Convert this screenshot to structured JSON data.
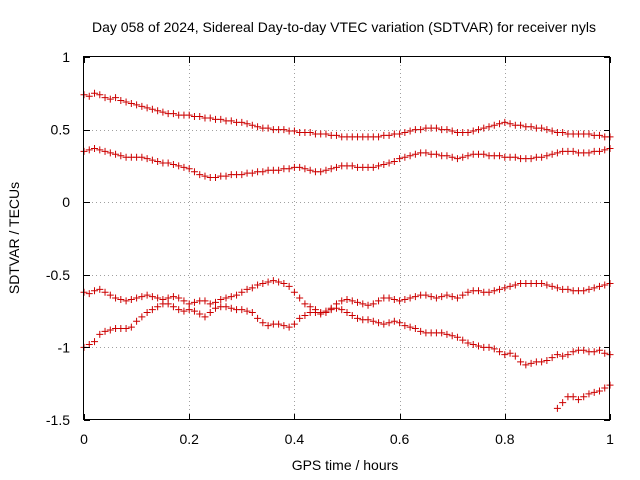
{
  "chart_data": {
    "type": "scatter",
    "title": "Day 058 of 2024, Sidereal Day-to-day VTEC variation (SDTVAR) for receiver nyls",
    "xlabel": "GPS time / hours",
    "ylabel": "SDTVAR / TECUs",
    "xlim": [
      0,
      1
    ],
    "ylim": [
      -1.5,
      1
    ],
    "x_ticks": [
      0,
      0.2,
      0.4,
      0.6,
      0.8,
      1
    ],
    "x_tick_labels": [
      "0",
      "0.2",
      "0.4",
      "0.6",
      "0.8",
      "1"
    ],
    "y_ticks": [
      -1.5,
      -1,
      -0.5,
      0,
      0.5,
      1
    ],
    "y_tick_labels": [
      "-1.5",
      "-1",
      "-0.5",
      "0",
      "0.5",
      "1"
    ],
    "grid": true,
    "marker": "+",
    "color": "#cc0000",
    "series": [
      {
        "name": "track-a",
        "x": [
          0.0,
          0.01,
          0.02,
          0.03,
          0.04,
          0.05,
          0.06,
          0.07,
          0.08,
          0.09,
          0.1,
          0.11,
          0.12,
          0.13,
          0.14,
          0.15,
          0.16,
          0.17,
          0.18,
          0.19,
          0.2,
          0.21,
          0.22,
          0.23,
          0.24,
          0.25,
          0.26,
          0.27,
          0.28,
          0.29,
          0.3,
          0.31,
          0.32,
          0.33,
          0.34,
          0.35,
          0.36,
          0.37,
          0.38,
          0.39,
          0.4,
          0.41,
          0.42,
          0.43,
          0.44,
          0.45,
          0.46,
          0.47,
          0.48,
          0.49,
          0.5,
          0.51,
          0.52,
          0.53,
          0.54,
          0.55,
          0.56,
          0.57,
          0.58,
          0.59,
          0.6,
          0.61,
          0.62,
          0.63,
          0.64,
          0.65,
          0.66,
          0.67,
          0.68,
          0.69,
          0.7,
          0.71,
          0.72,
          0.73,
          0.74,
          0.75,
          0.76,
          0.77,
          0.78,
          0.79,
          0.8,
          0.81,
          0.82,
          0.83,
          0.84,
          0.85,
          0.86,
          0.87,
          0.88,
          0.89,
          0.9,
          0.91,
          0.92,
          0.93,
          0.94,
          0.95,
          0.96,
          0.97,
          0.98,
          0.99,
          1.0
        ],
        "y": [
          0.74,
          0.73,
          0.75,
          0.74,
          0.72,
          0.71,
          0.72,
          0.7,
          0.69,
          0.68,
          0.67,
          0.66,
          0.65,
          0.64,
          0.63,
          0.62,
          0.61,
          0.61,
          0.6,
          0.6,
          0.6,
          0.59,
          0.59,
          0.58,
          0.58,
          0.57,
          0.57,
          0.56,
          0.56,
          0.55,
          0.55,
          0.54,
          0.53,
          0.52,
          0.51,
          0.51,
          0.5,
          0.5,
          0.5,
          0.49,
          0.49,
          0.48,
          0.48,
          0.48,
          0.47,
          0.47,
          0.47,
          0.46,
          0.46,
          0.45,
          0.45,
          0.45,
          0.45,
          0.45,
          0.45,
          0.45,
          0.45,
          0.46,
          0.46,
          0.47,
          0.47,
          0.48,
          0.49,
          0.5,
          0.5,
          0.51,
          0.51,
          0.51,
          0.5,
          0.5,
          0.49,
          0.48,
          0.48,
          0.48,
          0.49,
          0.5,
          0.51,
          0.52,
          0.53,
          0.54,
          0.55,
          0.54,
          0.53,
          0.53,
          0.52,
          0.52,
          0.51,
          0.51,
          0.5,
          0.49,
          0.48,
          0.48,
          0.47,
          0.47,
          0.47,
          0.47,
          0.47,
          0.46,
          0.46,
          0.45,
          0.45
        ]
      },
      {
        "name": "track-b",
        "x": [
          0.0,
          0.01,
          0.02,
          0.03,
          0.04,
          0.05,
          0.06,
          0.07,
          0.08,
          0.09,
          0.1,
          0.11,
          0.12,
          0.13,
          0.14,
          0.15,
          0.16,
          0.17,
          0.18,
          0.19,
          0.2,
          0.21,
          0.22,
          0.23,
          0.24,
          0.25,
          0.26,
          0.27,
          0.28,
          0.29,
          0.3,
          0.31,
          0.32,
          0.33,
          0.34,
          0.35,
          0.36,
          0.37,
          0.38,
          0.39,
          0.4,
          0.41,
          0.42,
          0.43,
          0.44,
          0.45,
          0.46,
          0.47,
          0.48,
          0.49,
          0.5,
          0.51,
          0.52,
          0.53,
          0.54,
          0.55,
          0.56,
          0.57,
          0.58,
          0.59,
          0.6,
          0.61,
          0.62,
          0.63,
          0.64,
          0.65,
          0.66,
          0.67,
          0.68,
          0.69,
          0.7,
          0.71,
          0.72,
          0.73,
          0.74,
          0.75,
          0.76,
          0.77,
          0.78,
          0.79,
          0.8,
          0.81,
          0.82,
          0.83,
          0.84,
          0.85,
          0.86,
          0.87,
          0.88,
          0.89,
          0.9,
          0.91,
          0.92,
          0.93,
          0.94,
          0.95,
          0.96,
          0.97,
          0.98,
          0.99,
          1.0
        ],
        "y": [
          0.35,
          0.36,
          0.37,
          0.36,
          0.35,
          0.34,
          0.33,
          0.32,
          0.31,
          0.31,
          0.31,
          0.31,
          0.3,
          0.29,
          0.28,
          0.27,
          0.27,
          0.26,
          0.25,
          0.24,
          0.23,
          0.21,
          0.19,
          0.18,
          0.17,
          0.17,
          0.18,
          0.18,
          0.19,
          0.19,
          0.19,
          0.2,
          0.2,
          0.21,
          0.21,
          0.22,
          0.22,
          0.22,
          0.23,
          0.23,
          0.24,
          0.24,
          0.23,
          0.22,
          0.21,
          0.21,
          0.22,
          0.23,
          0.24,
          0.25,
          0.25,
          0.25,
          0.24,
          0.24,
          0.24,
          0.24,
          0.25,
          0.26,
          0.27,
          0.28,
          0.3,
          0.31,
          0.32,
          0.33,
          0.34,
          0.34,
          0.33,
          0.33,
          0.32,
          0.32,
          0.31,
          0.3,
          0.31,
          0.32,
          0.33,
          0.33,
          0.33,
          0.32,
          0.32,
          0.32,
          0.31,
          0.31,
          0.31,
          0.3,
          0.3,
          0.3,
          0.31,
          0.31,
          0.32,
          0.33,
          0.34,
          0.35,
          0.35,
          0.35,
          0.34,
          0.34,
          0.34,
          0.35,
          0.35,
          0.36,
          0.37
        ]
      },
      {
        "name": "track-c",
        "x": [
          0.0,
          0.01,
          0.02,
          0.03,
          0.04,
          0.05,
          0.06,
          0.07,
          0.08,
          0.09,
          0.1,
          0.11,
          0.12,
          0.13,
          0.14,
          0.15,
          0.16,
          0.17,
          0.18,
          0.19,
          0.2,
          0.21,
          0.22,
          0.23,
          0.24,
          0.25,
          0.26,
          0.27,
          0.28,
          0.29,
          0.3,
          0.31,
          0.32,
          0.33,
          0.34,
          0.35,
          0.36,
          0.37,
          0.38,
          0.39,
          0.4,
          0.41,
          0.42,
          0.43,
          0.44,
          0.45,
          0.46,
          0.47,
          0.48,
          0.49,
          0.5,
          0.51,
          0.52,
          0.53,
          0.54,
          0.55,
          0.56,
          0.57,
          0.58,
          0.59,
          0.6,
          0.61,
          0.62,
          0.63,
          0.64,
          0.65,
          0.66,
          0.67,
          0.68,
          0.69,
          0.7,
          0.71,
          0.72,
          0.73,
          0.74,
          0.75,
          0.76,
          0.77,
          0.78,
          0.79,
          0.8,
          0.81,
          0.82,
          0.83,
          0.84,
          0.85,
          0.86,
          0.87,
          0.88,
          0.89,
          0.9,
          0.91,
          0.92,
          0.93,
          0.94,
          0.95,
          0.96,
          0.97,
          0.98,
          0.99,
          1.0
        ],
        "y": [
          -0.62,
          -0.63,
          -0.61,
          -0.6,
          -0.62,
          -0.64,
          -0.66,
          -0.67,
          -0.68,
          -0.67,
          -0.66,
          -0.65,
          -0.64,
          -0.65,
          -0.66,
          -0.67,
          -0.66,
          -0.65,
          -0.66,
          -0.68,
          -0.7,
          -0.69,
          -0.68,
          -0.68,
          -0.7,
          -0.69,
          -0.67,
          -0.66,
          -0.65,
          -0.64,
          -0.62,
          -0.6,
          -0.59,
          -0.57,
          -0.56,
          -0.55,
          -0.54,
          -0.55,
          -0.56,
          -0.58,
          -0.62,
          -0.66,
          -0.7,
          -0.72,
          -0.74,
          -0.76,
          -0.75,
          -0.73,
          -0.7,
          -0.68,
          -0.67,
          -0.68,
          -0.69,
          -0.7,
          -0.71,
          -0.7,
          -0.68,
          -0.66,
          -0.66,
          -0.67,
          -0.68,
          -0.67,
          -0.66,
          -0.65,
          -0.64,
          -0.64,
          -0.65,
          -0.66,
          -0.65,
          -0.64,
          -0.65,
          -0.66,
          -0.64,
          -0.62,
          -0.61,
          -0.61,
          -0.62,
          -0.62,
          -0.61,
          -0.6,
          -0.59,
          -0.58,
          -0.57,
          -0.56,
          -0.56,
          -0.56,
          -0.56,
          -0.56,
          -0.57,
          -0.58,
          -0.59,
          -0.6,
          -0.6,
          -0.61,
          -0.61,
          -0.61,
          -0.6,
          -0.59,
          -0.58,
          -0.57,
          -0.56
        ]
      },
      {
        "name": "track-d",
        "x": [
          0.0,
          0.01,
          0.02,
          0.03,
          0.04,
          0.05,
          0.06,
          0.07,
          0.08,
          0.09,
          0.1,
          0.11,
          0.12,
          0.13,
          0.14,
          0.15,
          0.16,
          0.17,
          0.18,
          0.19,
          0.2,
          0.21,
          0.22,
          0.23,
          0.24,
          0.25,
          0.26,
          0.27,
          0.28,
          0.29,
          0.3,
          0.31,
          0.32,
          0.33,
          0.34,
          0.35,
          0.36,
          0.37,
          0.38,
          0.39,
          0.4,
          0.41,
          0.42,
          0.43,
          0.44,
          0.45,
          0.46,
          0.47,
          0.48,
          0.49,
          0.5,
          0.51,
          0.52,
          0.53,
          0.54,
          0.55,
          0.56,
          0.57,
          0.58,
          0.59,
          0.6,
          0.61,
          0.62,
          0.63,
          0.64,
          0.65,
          0.66,
          0.67,
          0.68,
          0.69,
          0.7,
          0.71,
          0.72,
          0.73,
          0.74,
          0.75,
          0.76,
          0.77,
          0.78,
          0.79,
          0.8,
          0.81,
          0.82,
          0.83,
          0.84,
          0.85,
          0.86,
          0.87,
          0.88,
          0.89,
          0.9,
          0.91,
          0.92,
          0.93,
          0.94,
          0.95,
          0.96,
          0.97,
          0.98,
          0.99,
          1.0
        ],
        "y": [
          -1.0,
          -0.98,
          -0.96,
          -0.91,
          -0.89,
          -0.88,
          -0.87,
          -0.87,
          -0.87,
          -0.86,
          -0.82,
          -0.79,
          -0.76,
          -0.74,
          -0.72,
          -0.7,
          -0.7,
          -0.72,
          -0.74,
          -0.75,
          -0.74,
          -0.75,
          -0.77,
          -0.79,
          -0.76,
          -0.73,
          -0.72,
          -0.72,
          -0.73,
          -0.74,
          -0.74,
          -0.75,
          -0.76,
          -0.8,
          -0.83,
          -0.85,
          -0.84,
          -0.84,
          -0.85,
          -0.86,
          -0.84,
          -0.8,
          -0.78,
          -0.76,
          -0.76,
          -0.77,
          -0.76,
          -0.74,
          -0.73,
          -0.74,
          -0.76,
          -0.78,
          -0.8,
          -0.81,
          -0.81,
          -0.82,
          -0.83,
          -0.84,
          -0.83,
          -0.82,
          -0.83,
          -0.85,
          -0.86,
          -0.87,
          -0.89,
          -0.9,
          -0.9,
          -0.9,
          -0.9,
          -0.91,
          -0.92,
          -0.93,
          -0.95,
          -0.97,
          -0.98,
          -0.99,
          -1.0,
          -1.0,
          -1.01,
          -1.03,
          -1.05,
          -1.04,
          -1.06,
          -1.1,
          -1.12,
          -1.11,
          -1.1,
          -1.1,
          -1.09,
          -1.07,
          -1.05,
          -1.06,
          -1.05,
          -1.03,
          -1.02,
          -1.02,
          -1.03,
          -1.03,
          -1.02,
          -1.04,
          -1.05
        ]
      },
      {
        "name": "track-e",
        "x": [
          0.9,
          0.91,
          0.92,
          0.93,
          0.94,
          0.95,
          0.96,
          0.97,
          0.98,
          0.99,
          1.0
        ],
        "y": [
          -1.42,
          -1.38,
          -1.34,
          -1.34,
          -1.36,
          -1.34,
          -1.32,
          -1.31,
          -1.3,
          -1.28,
          -1.26
        ]
      }
    ]
  }
}
